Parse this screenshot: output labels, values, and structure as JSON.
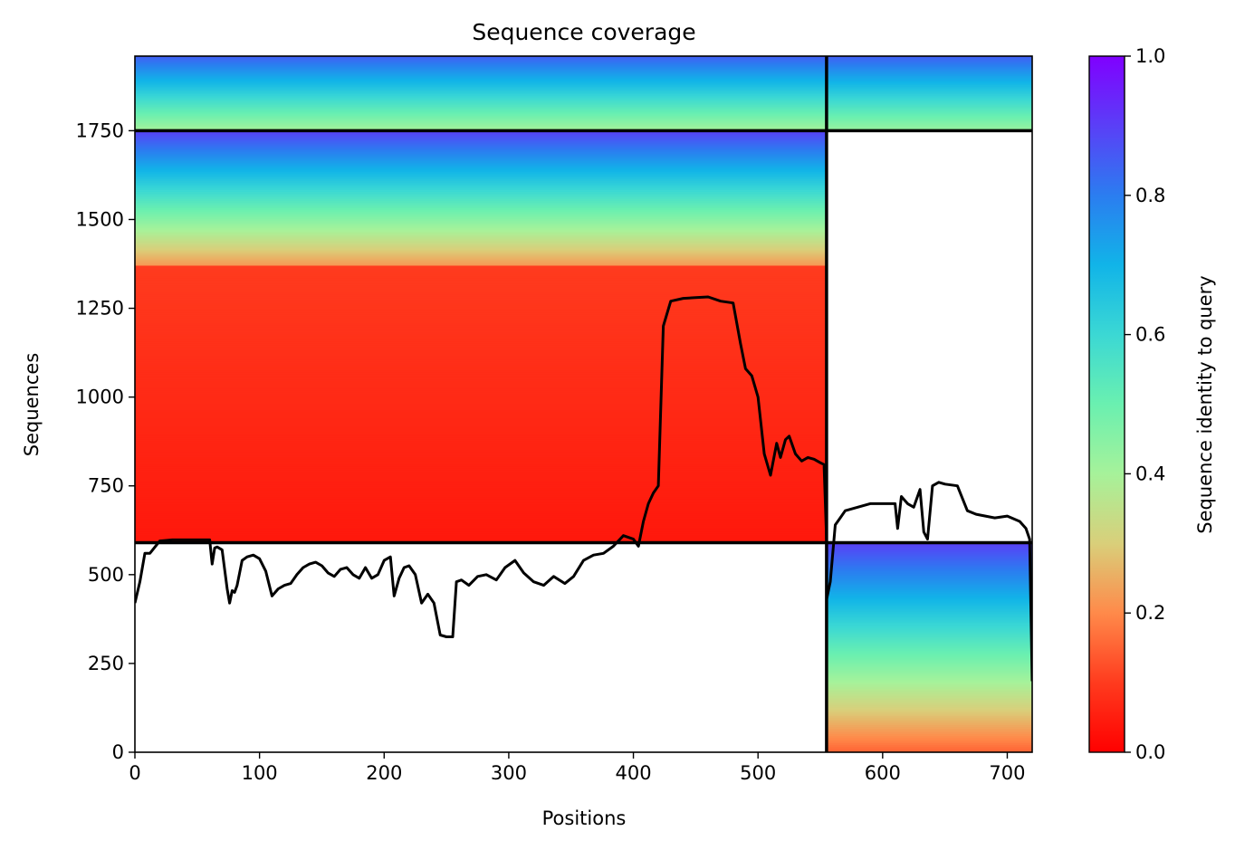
{
  "chart_data": {
    "type": "heatmap",
    "title": "Sequence coverage",
    "xlabel": "Positions",
    "ylabel": "Sequences",
    "colorbar_label": "Sequence identity to query",
    "xlim": [
      0,
      720
    ],
    "ylim": [
      0,
      1960
    ],
    "xticks": [
      0,
      100,
      200,
      300,
      400,
      500,
      600,
      700
    ],
    "yticks": [
      0,
      250,
      500,
      750,
      1000,
      1250,
      1500,
      1750
    ],
    "colorbar_ticks": [
      0.0,
      0.2,
      0.4,
      0.6,
      0.8,
      1.0
    ],
    "colormap": "rainbow_r",
    "divider_lines": {
      "vertical_x": [
        555
      ],
      "horizontal_y": [
        590,
        1750
      ]
    },
    "blocks": [
      {
        "name": "chain-1-paired",
        "x_range": [
          0,
          555
        ],
        "y_range": [
          1750,
          1960
        ],
        "identity_top": 0.85,
        "identity_bottom": 0.4
      },
      {
        "name": "chain-2-paired",
        "x_range": [
          555,
          720
        ],
        "y_range": [
          1750,
          1960
        ],
        "identity_top": 0.85,
        "identity_bottom": 0.42
      },
      {
        "name": "chain-1-unpaired-high",
        "x_range": [
          0,
          555
        ],
        "y_range": [
          1370,
          1750
        ],
        "identity_top": 0.9,
        "identity_bottom": 0.22
      },
      {
        "name": "chain-1-unpaired-low",
        "x_range": [
          0,
          555
        ],
        "y_range": [
          590,
          1370
        ],
        "identity_top": 0.1,
        "identity_bottom": 0.04
      },
      {
        "name": "chain-2-unpaired",
        "x_range": [
          555,
          720
        ],
        "y_range": [
          0,
          590
        ],
        "identity_top": 0.9,
        "identity_bottom": 0.15
      }
    ],
    "coverage_line_1": {
      "x": [
        0,
        4,
        8,
        12,
        20,
        30,
        40,
        50,
        60,
        62,
        64,
        66,
        70,
        74,
        76,
        78,
        80,
        82,
        86,
        90,
        95,
        100,
        105,
        110,
        115,
        120,
        125,
        130,
        135,
        140,
        145,
        150,
        155,
        160,
        165,
        170,
        175,
        180,
        185,
        190,
        195,
        200,
        205,
        208,
        212,
        216,
        220,
        225,
        230,
        235,
        240,
        245,
        250,
        255,
        258,
        262,
        268,
        275,
        282,
        290,
        297,
        305,
        312,
        320,
        328,
        336,
        345,
        352,
        360,
        368,
        376,
        384,
        392,
        400,
        404,
        408,
        412,
        416,
        420,
        424,
        430,
        440,
        450,
        460,
        470,
        480,
        486,
        490,
        495,
        500,
        505,
        510,
        515,
        518,
        522,
        525,
        530,
        535,
        540,
        545,
        550,
        553,
        555
      ],
      "y": [
        420,
        480,
        560,
        560,
        595,
        598,
        598,
        598,
        598,
        530,
        575,
        578,
        570,
        460,
        420,
        455,
        450,
        470,
        540,
        550,
        555,
        545,
        510,
        440,
        460,
        470,
        475,
        500,
        520,
        530,
        535,
        525,
        505,
        495,
        515,
        520,
        500,
        490,
        520,
        490,
        500,
        540,
        550,
        440,
        490,
        520,
        525,
        500,
        420,
        445,
        420,
        330,
        325,
        325,
        480,
        485,
        470,
        495,
        500,
        485,
        520,
        540,
        505,
        480,
        470,
        495,
        475,
        495,
        540,
        555,
        560,
        580,
        610,
        600,
        580,
        650,
        700,
        730,
        750,
        1200,
        1270,
        1278,
        1280,
        1282,
        1270,
        1265,
        1150,
        1080,
        1060,
        1000,
        840,
        780,
        870,
        830,
        880,
        890,
        840,
        820,
        830,
        825,
        815,
        810,
        600
      ],
      "color": "#000000"
    },
    "coverage_line_2": {
      "x": [
        555,
        558,
        562,
        566,
        570,
        580,
        590,
        600,
        610,
        612,
        615,
        620,
        625,
        630,
        633,
        636,
        640,
        645,
        650,
        660,
        668,
        675,
        690,
        700,
        710,
        715,
        718,
        720
      ],
      "y": [
        430,
        480,
        640,
        660,
        680,
        690,
        700,
        700,
        700,
        630,
        720,
        700,
        690,
        740,
        620,
        600,
        750,
        760,
        755,
        750,
        680,
        670,
        660,
        665,
        650,
        630,
        600,
        200
      ],
      "color": "#000000"
    }
  }
}
